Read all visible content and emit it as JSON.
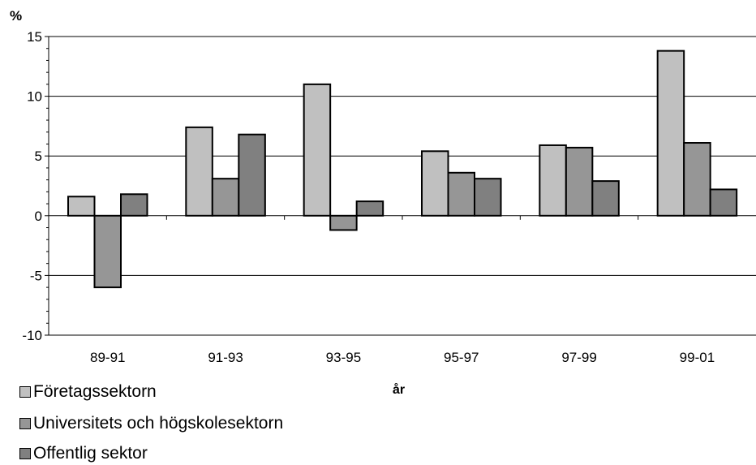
{
  "chart_data": {
    "type": "bar",
    "ylabel": "%",
    "xlabel": "år",
    "ylim": [
      -10,
      15
    ],
    "yticks": [
      -10,
      -5,
      0,
      5,
      10,
      15
    ],
    "categories": [
      "89-91",
      "91-93",
      "93-95",
      "95-97",
      "97-99",
      "99-01"
    ],
    "series": [
      {
        "name": "Företagssektorn",
        "color": "#c0c0c0",
        "values": [
          1.6,
          7.4,
          11.0,
          5.4,
          5.9,
          13.8
        ]
      },
      {
        "name": "Universitets och högskolesektorn",
        "color": "#969696",
        "values": [
          -6.0,
          3.1,
          -1.2,
          3.6,
          5.7,
          6.1
        ]
      },
      {
        "name": "Offentlig sektor",
        "color": "#808080",
        "values": [
          1.8,
          6.8,
          1.2,
          3.1,
          2.9,
          2.2
        ]
      }
    ],
    "grid": true,
    "legend": "bottom-left"
  }
}
